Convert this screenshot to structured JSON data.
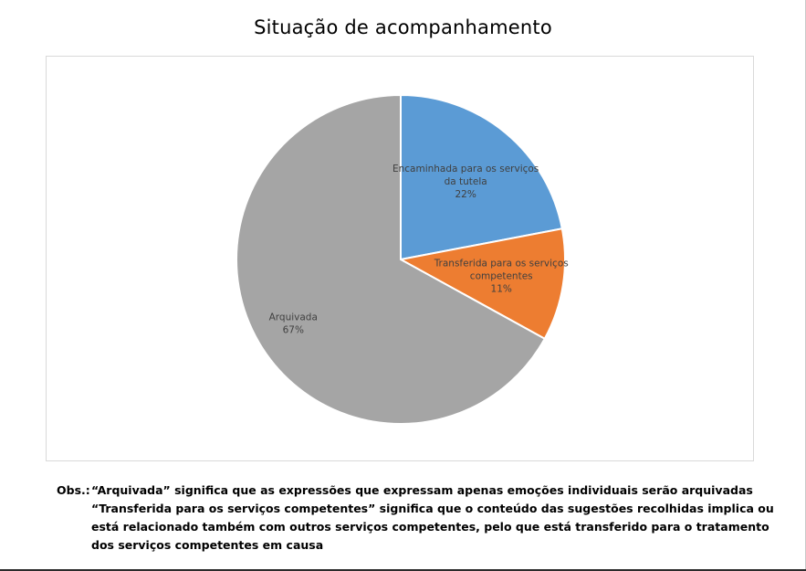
{
  "chart_data": {
    "type": "pie",
    "title": "Situação de acompanhamento",
    "slices": [
      {
        "label_lines": [
          "Encaminhada para os serviços",
          "da tutela"
        ],
        "value": 22,
        "value_label": "22%",
        "color": "#5B9BD5"
      },
      {
        "label_lines": [
          "Transferida para os serviços",
          "competentes"
        ],
        "value": 11,
        "value_label": "11%",
        "color": "#ED7D31"
      },
      {
        "label_lines": [
          "Arquivada"
        ],
        "value": 67,
        "value_label": "67%",
        "color": "#A5A5A5"
      }
    ],
    "start": "12 o'clock",
    "direction": "clockwise",
    "legend": "none",
    "data_labels": "inside slices"
  },
  "notes": {
    "prefix": "Obs.:",
    "lines": [
      "“Arquivada” significa que as expressões que expressam apenas emoções individuais serão arquivadas",
      "“Transferida para os serviços competentes” significa que o conteúdo das sugestões recolhidas implica ou",
      "está relacionado também com outros serviços competentes, pelo que está transferido para o tratamento",
      "dos serviços competentes em causa"
    ]
  }
}
